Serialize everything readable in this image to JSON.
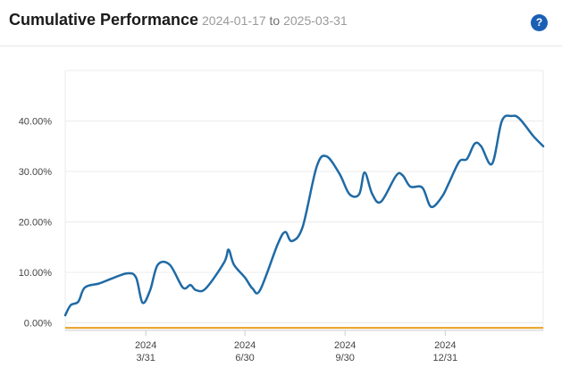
{
  "header": {
    "title": "Cumulative Performance",
    "date_start": "2024-01-17",
    "date_sep": "to",
    "date_end": "2025-03-31",
    "help_label": "?"
  },
  "colors": {
    "series": "#1f6aa5",
    "baseline": "#e8a020",
    "grid": "#ebebeb",
    "help": "#1a5fb4"
  },
  "chart_data": {
    "type": "line",
    "title": "Cumulative Performance",
    "xlabel": "",
    "ylabel": "",
    "grid": true,
    "ylim": [
      -1.5,
      50
    ],
    "xlim": [
      "2024-01-17",
      "2025-03-31"
    ],
    "yticks": [
      "0.00%",
      "10.00%",
      "20.00%",
      "30.00%",
      "40.00%"
    ],
    "ytick_values": [
      0,
      10,
      20,
      30,
      40
    ],
    "xticks": [
      {
        "date": "2024-03-31",
        "year": "2024",
        "label": "3/31"
      },
      {
        "date": "2024-06-30",
        "year": "2024",
        "label": "6/30"
      },
      {
        "date": "2024-09-30",
        "year": "2024",
        "label": "9/30"
      },
      {
        "date": "2024-12-31",
        "year": "2024",
        "label": "12/31"
      }
    ],
    "series": [
      {
        "values": [
          [
            "2024-01-17",
            1.5
          ],
          [
            "2024-01-22",
            3.5
          ],
          [
            "2024-01-29",
            4.2
          ],
          [
            "2024-02-04",
            7.0
          ],
          [
            "2024-02-17",
            7.8
          ],
          [
            "2024-02-29",
            8.8
          ],
          [
            "2024-03-14",
            9.8
          ],
          [
            "2024-03-22",
            9.0
          ],
          [
            "2024-03-28",
            4.0
          ],
          [
            "2024-04-04",
            6.5
          ],
          [
            "2024-04-11",
            11.5
          ],
          [
            "2024-04-22",
            11.5
          ],
          [
            "2024-05-04",
            7.0
          ],
          [
            "2024-05-11",
            7.5
          ],
          [
            "2024-05-16",
            6.5
          ],
          [
            "2024-05-25",
            6.8
          ],
          [
            "2024-06-11",
            12.0
          ],
          [
            "2024-06-15",
            14.5
          ],
          [
            "2024-06-20",
            11.5
          ],
          [
            "2024-06-30",
            9.0
          ],
          [
            "2024-07-07",
            6.8
          ],
          [
            "2024-07-14",
            6.5
          ],
          [
            "2024-07-30",
            15.5
          ],
          [
            "2024-08-06",
            18.0
          ],
          [
            "2024-08-12",
            16.2
          ],
          [
            "2024-08-22",
            19.0
          ],
          [
            "2024-09-04",
            31.0
          ],
          [
            "2024-09-13",
            33.0
          ],
          [
            "2024-09-25",
            29.5
          ],
          [
            "2024-10-04",
            25.5
          ],
          [
            "2024-10-13",
            25.5
          ],
          [
            "2024-10-18",
            29.8
          ],
          [
            "2024-10-25",
            25.5
          ],
          [
            "2024-11-02",
            24.0
          ],
          [
            "2024-11-16",
            29.2
          ],
          [
            "2024-11-22",
            29.2
          ],
          [
            "2024-11-29",
            27.0
          ],
          [
            "2024-12-10",
            26.8
          ],
          [
            "2024-12-18",
            23.0
          ],
          [
            "2024-12-28",
            25.0
          ],
          [
            "2025-01-04",
            28.0
          ],
          [
            "2025-01-13",
            32.0
          ],
          [
            "2025-01-20",
            32.5
          ],
          [
            "2025-01-27",
            35.5
          ],
          [
            "2025-02-02",
            35.0
          ],
          [
            "2025-02-12",
            31.5
          ],
          [
            "2025-02-21",
            40.0
          ],
          [
            "2025-03-02",
            41.0
          ],
          [
            "2025-03-09",
            40.5
          ],
          [
            "2025-03-22",
            37.0
          ],
          [
            "2025-03-31",
            35.0
          ]
        ]
      },
      {
        "values": [
          [
            "2024-01-17",
            -1.0
          ],
          [
            "2025-03-31",
            -1.0
          ]
        ]
      }
    ]
  }
}
